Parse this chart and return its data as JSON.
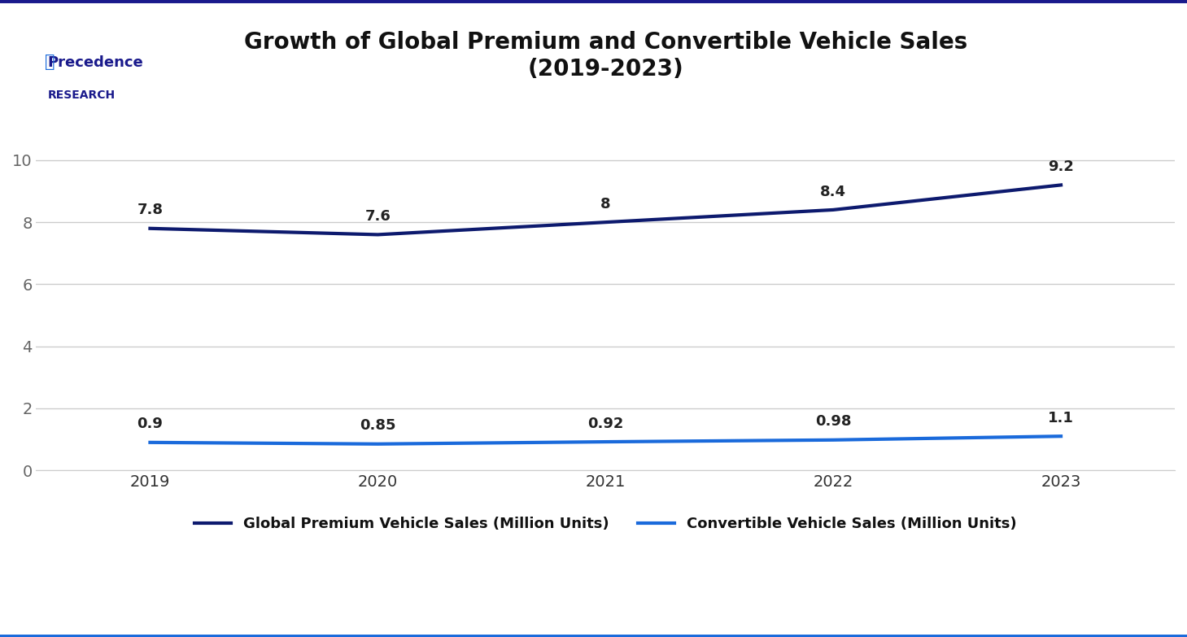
{
  "title": "Growth of Global Premium and Convertible Vehicle Sales\n(2019-2023)",
  "years": [
    2019,
    2020,
    2021,
    2022,
    2023
  ],
  "premium_sales": [
    7.8,
    7.6,
    8.0,
    8.4,
    9.2
  ],
  "convertible_sales": [
    0.9,
    0.85,
    0.92,
    0.98,
    1.1
  ],
  "premium_labels": [
    "7.8",
    "7.6",
    "8",
    "8.4",
    "9.2"
  ],
  "convertible_labels": [
    "0.9",
    "0.85",
    "0.92",
    "0.98",
    "1.1"
  ],
  "premium_color": "#0d1a6e",
  "convertible_color": "#1a6adb",
  "premium_legend": "Global Premium Vehicle Sales (Million Units)",
  "convertible_legend": "Convertible Vehicle Sales (Million Units)",
  "ylim": [
    0,
    12
  ],
  "yticks": [
    0,
    2,
    4,
    6,
    8,
    10
  ],
  "background_color": "#ffffff",
  "grid_color": "#cccccc",
  "title_fontsize": 20,
  "tick_fontsize": 14,
  "label_fontsize": 13,
  "legend_fontsize": 13,
  "border_top_color": "#1a1a8c",
  "border_bottom_color": "#1a6adb",
  "logo_main_color": "#1a1a8c",
  "logo_accent_color": "#1a6adb"
}
